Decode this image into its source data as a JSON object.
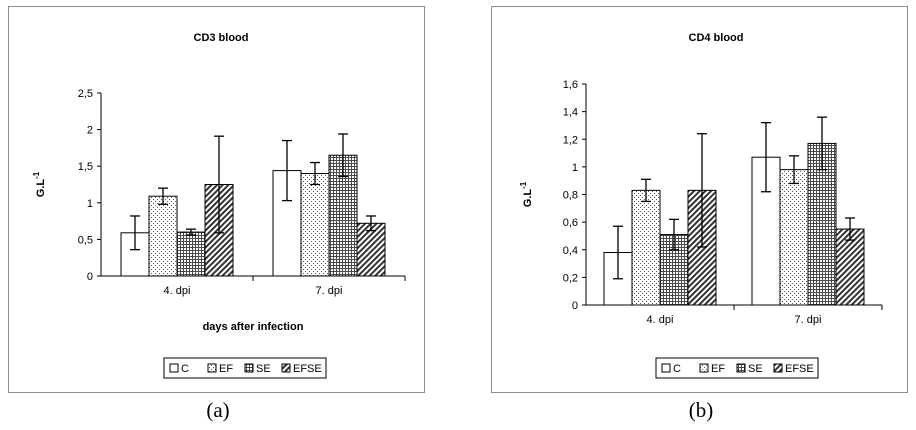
{
  "chart_data": [
    {
      "type": "bar",
      "title": "CD3 blood",
      "xlabel": "days after infection",
      "ylabel": "G.L",
      "ylabel_superscript": "-1",
      "categories": [
        "4. dpi",
        "7. dpi"
      ],
      "ylim": [
        0,
        2.5
      ],
      "yticks": [
        "0",
        "0,5",
        "1",
        "1,5",
        "2",
        "2,5"
      ],
      "ytick_values": [
        0,
        0.5,
        1,
        1.5,
        2,
        2.5
      ],
      "series": [
        {
          "name": "C",
          "pattern": "plain",
          "values": [
            0.59,
            1.44
          ],
          "errors": [
            0.23,
            0.41
          ]
        },
        {
          "name": "EF",
          "pattern": "dots",
          "values": [
            1.09,
            1.4
          ],
          "errors": [
            0.11,
            0.15
          ]
        },
        {
          "name": "SE",
          "pattern": "grid",
          "values": [
            0.6,
            1.65
          ],
          "errors": [
            0.04,
            0.29
          ]
        },
        {
          "name": "EFSE",
          "pattern": "hatch",
          "values": [
            1.25,
            0.72
          ],
          "errors": [
            0.66,
            0.1
          ]
        }
      ],
      "legend_position": "bottom",
      "caption": "(a)"
    },
    {
      "type": "bar",
      "title": "CD4 blood",
      "xlabel": "",
      "ylabel": "G.L",
      "ylabel_superscript": "-1",
      "categories": [
        "4. dpi",
        "7. dpi"
      ],
      "ylim": [
        0,
        1.6
      ],
      "yticks": [
        "0",
        "0,2",
        "0,4",
        "0,6",
        "0,8",
        "1",
        "1,2",
        "1,4",
        "1,6"
      ],
      "ytick_values": [
        0,
        0.2,
        0.4,
        0.6,
        0.8,
        1,
        1.2,
        1.4,
        1.6
      ],
      "series": [
        {
          "name": "C",
          "pattern": "plain",
          "values": [
            0.38,
            1.07
          ],
          "errors": [
            0.19,
            0.25
          ]
        },
        {
          "name": "EF",
          "pattern": "dots",
          "values": [
            0.83,
            0.98
          ],
          "errors": [
            0.08,
            0.1
          ]
        },
        {
          "name": "SE",
          "pattern": "grid",
          "values": [
            0.51,
            1.17
          ],
          "errors": [
            0.11,
            0.19
          ]
        },
        {
          "name": "EFSE",
          "pattern": "hatch",
          "values": [
            0.83,
            0.55
          ],
          "errors": [
            0.41,
            0.08
          ]
        }
      ],
      "legend_position": "bottom",
      "caption": "(b)"
    }
  ]
}
